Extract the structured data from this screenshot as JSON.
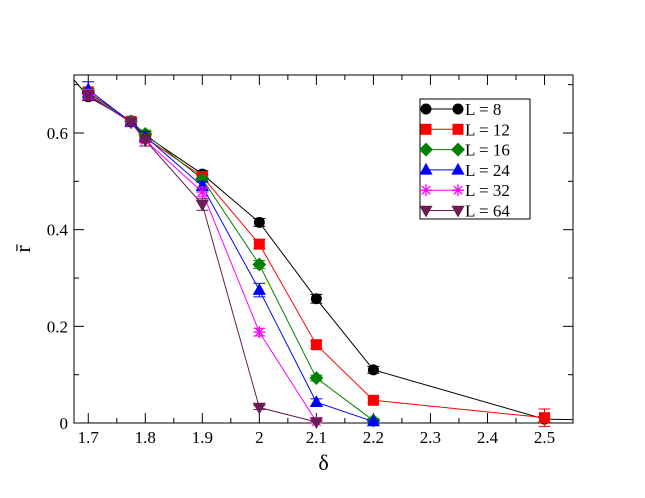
{
  "chart_data": {
    "type": "line",
    "xlabel": "δ",
    "ylabel": "r̄",
    "xlim": [
      1.675,
      2.55
    ],
    "ylim": [
      0,
      0.72
    ],
    "x_ticks": [
      "1.7",
      "1.8",
      "1.9",
      "2",
      "2.1",
      "2.2",
      "2.3",
      "2.4",
      "2.5"
    ],
    "y_ticks": [
      "0",
      "0.2",
      "0.4",
      "0.6"
    ],
    "legend_position": "top-right",
    "grid": false,
    "series": [
      {
        "name": "L = 8",
        "color": "#000000",
        "marker": "circle",
        "x": [
          1.675,
          1.7,
          1.775,
          1.8,
          1.9,
          2.0,
          2.1,
          2.2,
          2.5,
          2.55
        ],
        "y": [
          0.71,
          0.675,
          0.625,
          0.595,
          0.515,
          0.415,
          0.257,
          0.11,
          0.008,
          0.007
        ],
        "err": [
          0,
          0.008,
          0.006,
          0.008,
          0.007,
          0.008,
          0.009,
          0.007,
          0.006,
          0
        ],
        "marked": [
          false,
          true,
          true,
          true,
          true,
          true,
          true,
          true,
          true,
          false
        ]
      },
      {
        "name": "L = 12",
        "color": "#ff0000",
        "marker": "square",
        "x": [
          1.7,
          1.775,
          1.8,
          1.9,
          2.0,
          2.1,
          2.2,
          2.5
        ],
        "y": [
          0.685,
          0.624,
          0.59,
          0.51,
          0.37,
          0.162,
          0.047,
          0.011
        ],
        "err": [
          0.008,
          0.006,
          0.008,
          0.007,
          0.01,
          0.008,
          0.006,
          0.018
        ],
        "marked": [
          true,
          true,
          true,
          true,
          true,
          true,
          true,
          true
        ]
      },
      {
        "name": "L = 16",
        "color": "#008000",
        "marker": "diamond",
        "x": [
          1.7,
          1.775,
          1.8,
          1.9,
          2.0,
          2.1,
          2.2
        ],
        "y": [
          0.683,
          0.624,
          0.598,
          0.505,
          0.328,
          0.093,
          0.005
        ],
        "err": [
          0.008,
          0.006,
          0.008,
          0.007,
          0.008,
          0.006,
          0.004
        ],
        "marked": [
          true,
          true,
          true,
          true,
          true,
          true,
          true
        ]
      },
      {
        "name": "L = 24",
        "color": "#0000ff",
        "marker": "triangle-up",
        "x": [
          1.7,
          1.775,
          1.8,
          1.9,
          2.0,
          2.1,
          2.2
        ],
        "y": [
          0.69,
          0.622,
          0.593,
          0.49,
          0.275,
          0.043,
          0.003
        ],
        "err": [
          0.016,
          0.006,
          0.01,
          0.009,
          0.014,
          0.007,
          0.003
        ],
        "marked": [
          true,
          true,
          true,
          true,
          true,
          true,
          true
        ]
      },
      {
        "name": "L = 32",
        "color": "#ff00ff",
        "marker": "star",
        "x": [
          1.7,
          1.775,
          1.8,
          1.9,
          2.0,
          2.1
        ],
        "y": [
          0.68,
          0.622,
          0.585,
          0.478,
          0.188,
          0.003
        ],
        "err": [
          0.01,
          0.006,
          0.012,
          0.01,
          0.008,
          0.003
        ],
        "marked": [
          true,
          true,
          true,
          true,
          true,
          true
        ]
      },
      {
        "name": "L = 64",
        "color": "#6b1c52",
        "marker": "triangle-down",
        "x": [
          1.7,
          1.775,
          1.8,
          1.9,
          2.0,
          2.1
        ],
        "y": [
          0.678,
          0.622,
          0.585,
          0.452,
          0.032,
          0.002
        ],
        "err": [
          0.01,
          0.006,
          0.012,
          0.012,
          0.004,
          0.002
        ],
        "marked": [
          true,
          true,
          true,
          true,
          true,
          true
        ]
      }
    ]
  }
}
